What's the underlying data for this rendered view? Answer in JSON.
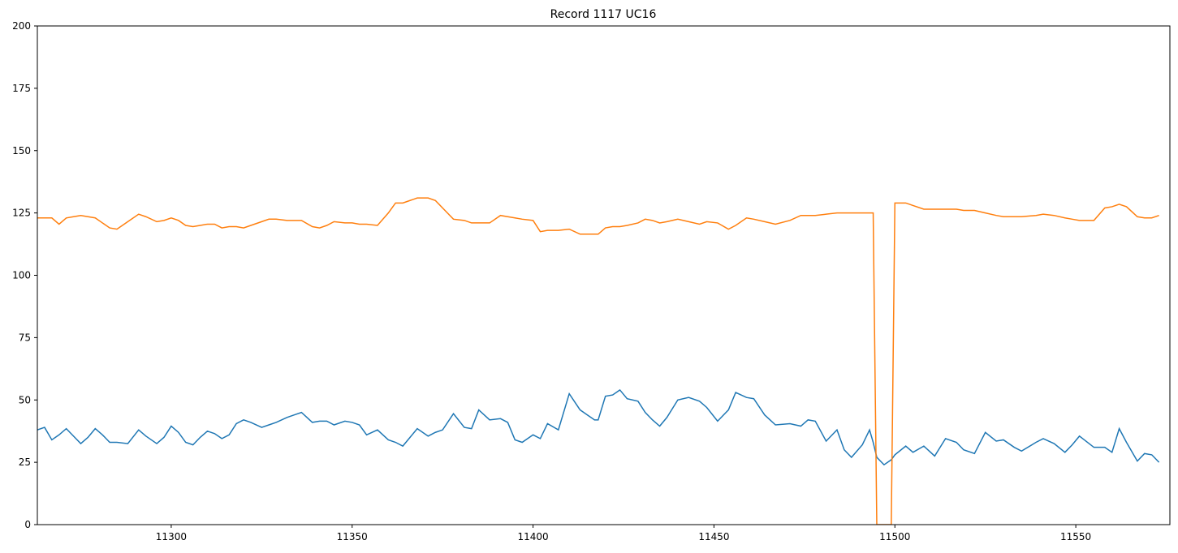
{
  "chart_data": {
    "type": "line",
    "title": "Record 1117 UC16",
    "x": [
      11263,
      11265,
      11267,
      11269,
      11271,
      11273,
      11275,
      11277,
      11279,
      11281,
      11283,
      11285,
      11288,
      11291,
      11293,
      11296,
      11298,
      11300,
      11302,
      11304,
      11306,
      11308,
      11310,
      11312,
      11314,
      11316,
      11318,
      11320,
      11322,
      11325,
      11327,
      11329,
      11332,
      11334,
      11336,
      11339,
      11341,
      11343,
      11345,
      11348,
      11350,
      11352,
      11354,
      11357,
      11360,
      11362,
      11364,
      11366,
      11368,
      11371,
      11373,
      11375,
      11378,
      11381,
      11383,
      11385,
      11388,
      11391,
      11393,
      11395,
      11397,
      11400,
      11402,
      11404,
      11407,
      11410,
      11413,
      11415,
      11417,
      11418,
      11420,
      11422,
      11424,
      11426,
      11429,
      11431,
      11433,
      11435,
      11437,
      11440,
      11443,
      11446,
      11448,
      11451,
      11454,
      11456,
      11459,
      11461,
      11464,
      11467,
      11471,
      11474,
      11476,
      11478,
      11481,
      11484,
      11486,
      11488,
      11491,
      11493,
      11494,
      11495,
      11497,
      11499,
      11500,
      11503,
      11505,
      11508,
      11511,
      11514,
      11517,
      11519,
      11522,
      11525,
      11528,
      11530,
      11533,
      11535,
      11539,
      11541,
      11544,
      11547,
      11549,
      11551,
      11555,
      11558,
      11560,
      11562,
      11564,
      11567,
      11569,
      11571,
      11573
    ],
    "series": [
      {
        "color": "#1f77b4",
        "values": [
          38,
          39,
          34,
          36,
          38.5,
          35.5,
          32.5,
          35,
          38.5,
          36,
          33,
          33,
          32.5,
          38,
          35.5,
          32.5,
          35,
          39.5,
          37,
          33,
          32,
          35,
          37.5,
          36.5,
          34.5,
          36,
          40.5,
          42,
          41,
          39,
          40,
          41,
          43,
          44,
          45,
          41,
          41.5,
          41.5,
          40,
          41.5,
          41,
          40,
          36,
          38,
          34,
          33,
          31.5,
          35,
          38.5,
          35.5,
          37,
          38,
          44.5,
          39,
          38.5,
          46,
          42,
          42.5,
          41,
          34,
          33,
          36,
          34.5,
          40.5,
          38,
          52.5,
          46,
          44,
          42,
          42,
          51.5,
          52,
          54,
          50.5,
          49.5,
          45,
          42,
          39.5,
          43,
          50,
          51,
          49.5,
          47,
          41.5,
          46,
          53,
          51,
          50.5,
          44,
          40,
          40.5,
          39.5,
          42,
          41.5,
          33.5,
          38,
          30,
          27,
          32,
          38,
          33,
          27,
          24,
          26,
          28,
          31.5,
          29,
          31.5,
          27.5,
          34.5,
          33,
          30,
          28.5,
          37,
          33.5,
          34,
          31,
          29.5,
          33,
          34.5,
          32.5,
          29,
          32,
          35.5,
          31,
          31,
          29,
          38.5,
          33,
          25.5,
          28.5,
          28,
          25
        ]
      },
      {
        "color": "#ff7f0e",
        "values": [
          123,
          123,
          123,
          120.5,
          123,
          123.5,
          124,
          123.5,
          123,
          121,
          119,
          118.5,
          121.5,
          124.5,
          123.5,
          121.5,
          122,
          123,
          122,
          120,
          119.5,
          120,
          120.5,
          120.5,
          119,
          119.5,
          119.5,
          119,
          120,
          121.5,
          122.5,
          122.5,
          122,
          122,
          122,
          119.5,
          119,
          120,
          121.5,
          121,
          121,
          120.5,
          120.5,
          120,
          125,
          129,
          129,
          130,
          131,
          131,
          130,
          127,
          122.5,
          122,
          121,
          121,
          121,
          124,
          123.5,
          123,
          122.5,
          122,
          117.5,
          118,
          118,
          118.5,
          116.5,
          116.5,
          116.5,
          116.5,
          119,
          119.5,
          119.5,
          120,
          121,
          122.5,
          122,
          121,
          121.5,
          122.5,
          121.5,
          120.5,
          121.5,
          121,
          118.5,
          120,
          123,
          122.5,
          121.5,
          120.5,
          122,
          124,
          124,
          124,
          124.5,
          125,
          125,
          125,
          125,
          125,
          125,
          0,
          0,
          0,
          129,
          129,
          128,
          126.5,
          126.5,
          126.5,
          126.5,
          126,
          126,
          125,
          124,
          123.5,
          123.5,
          123.5,
          124,
          124.5,
          124,
          123,
          122.5,
          122,
          122,
          127,
          127.5,
          128.5,
          127.5,
          123.5,
          123,
          123,
          124
        ]
      }
    ],
    "xlim": [
      11263,
      11576
    ],
    "xticks": [
      11300,
      11350,
      11400,
      11450,
      11500,
      11550
    ],
    "ylim": [
      0,
      200
    ],
    "yticks": [
      0,
      25,
      50,
      75,
      100,
      125,
      150,
      175,
      200
    ]
  }
}
